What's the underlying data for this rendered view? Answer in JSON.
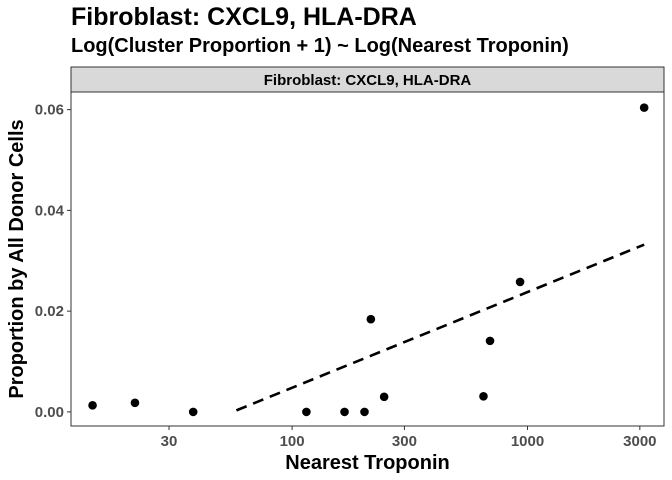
{
  "chart_data": {
    "type": "scatter",
    "title": "Fibroblast: CXCL9, HLA-DRA",
    "subtitle": "Log(Cluster Proportion + 1) ~ Log(Nearest Troponin)",
    "facet_label": "Fibroblast: CXCL9, HLA-DRA",
    "xlabel": "Nearest Troponin",
    "ylabel": "Proportion by All Donor Cells",
    "x_scale": "log10",
    "xlim": [
      11.5,
      3800
    ],
    "ylim": [
      -0.0028,
      0.0635
    ],
    "x_ticks": [
      30,
      100,
      300,
      1000,
      3000
    ],
    "x_tick_labels": [
      "30",
      "100",
      "300",
      "1000",
      "3000"
    ],
    "y_ticks": [
      0.0,
      0.02,
      0.04,
      0.06
    ],
    "y_tick_labels": [
      "0.00",
      "0.02",
      "0.04",
      "0.06"
    ],
    "grid": false,
    "points": [
      {
        "x": 14.2,
        "y": 0.0013
      },
      {
        "x": 21.5,
        "y": 0.0018
      },
      {
        "x": 38,
        "y": 0.0
      },
      {
        "x": 115,
        "y": 0.0
      },
      {
        "x": 167,
        "y": 0.0
      },
      {
        "x": 203,
        "y": 0.0
      },
      {
        "x": 216,
        "y": 0.0184
      },
      {
        "x": 246,
        "y": 0.003
      },
      {
        "x": 650,
        "y": 0.0031
      },
      {
        "x": 693,
        "y": 0.0141
      },
      {
        "x": 930,
        "y": 0.0258
      },
      {
        "x": 3130,
        "y": 0.0604
      }
    ],
    "trend_line": {
      "style": "dashed",
      "x": [
        58,
        3130
      ],
      "y": [
        0.0003,
        0.0332
      ]
    },
    "colors": {
      "point": "#000000",
      "strip_fill": "#d9d9d9",
      "strip_border": "#333333",
      "panel_border": "#333333"
    }
  }
}
